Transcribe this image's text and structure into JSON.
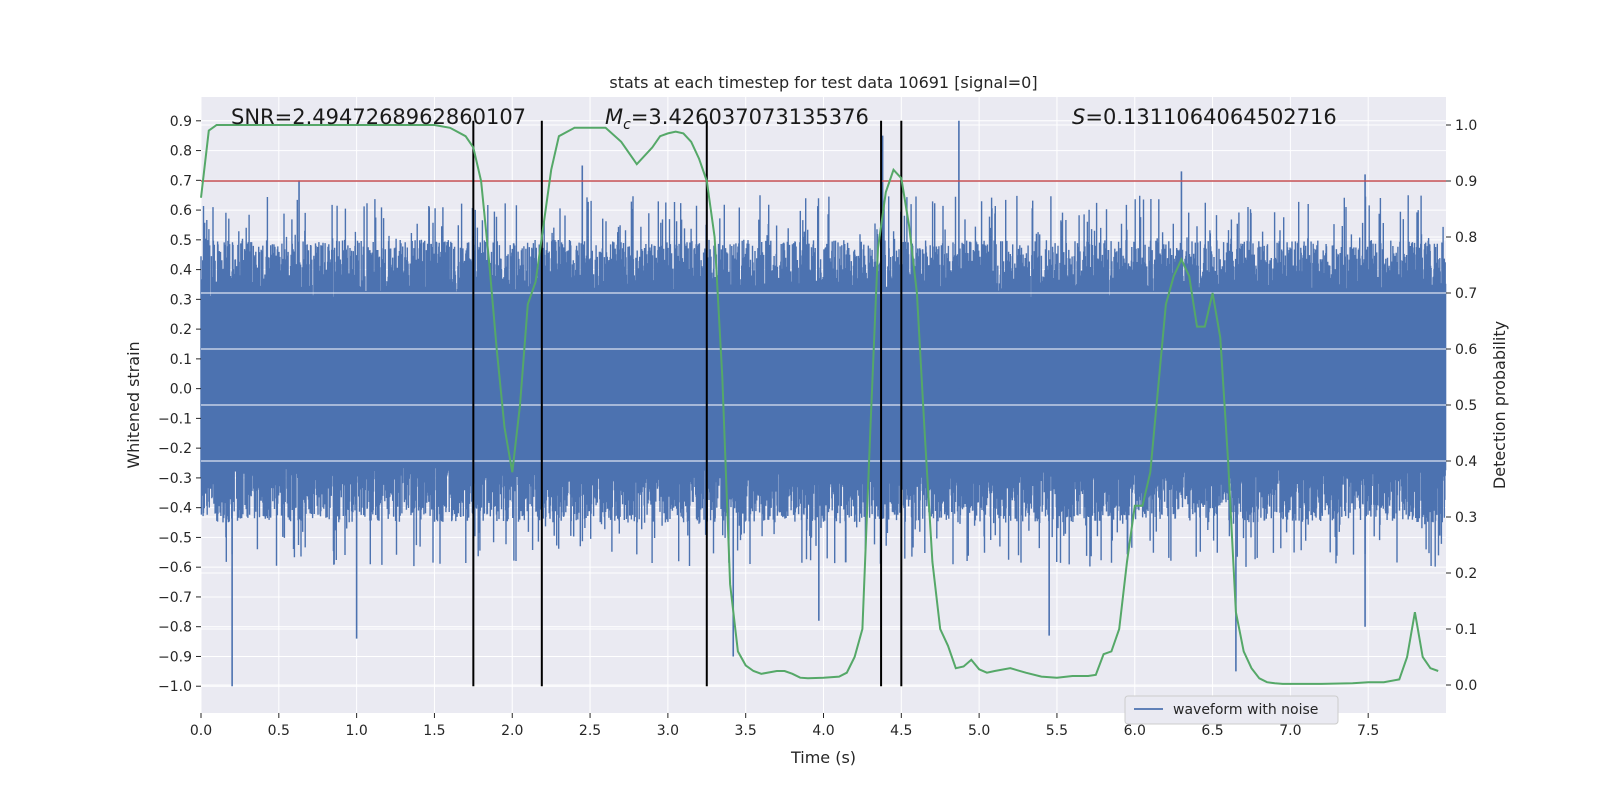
{
  "colors": {
    "background": "#EAEAF2",
    "grid": "#FFFFFF",
    "waveform": "#4C72B0",
    "probability": "#55A868",
    "threshold": "#C44E52",
    "marker": "#000000"
  },
  "chart_data": {
    "type": "line",
    "title": "stats at each timestep for test data 10691 [signal=0]",
    "xlabel": "Time (s)",
    "ylabel_left": "Whitened strain",
    "ylabel_right": "Detection probability",
    "xlim": [
      0.0,
      8.0
    ],
    "ylim_left": [
      -1.09,
      0.98
    ],
    "ylim_right": [
      -0.05,
      1.05
    ],
    "x_ticks": [
      "0.0",
      "0.5",
      "1.0",
      "1.5",
      "2.0",
      "2.5",
      "3.0",
      "3.5",
      "4.0",
      "4.5",
      "5.0",
      "5.5",
      "6.0",
      "6.5",
      "7.0",
      "7.5"
    ],
    "left_ticks": [
      "0.9",
      "0.8",
      "0.7",
      "0.6",
      "0.5",
      "0.4",
      "0.3",
      "0.2",
      "0.1",
      "0.0",
      "−0.1",
      "−0.2",
      "−0.3",
      "−0.4",
      "−0.5",
      "−0.6",
      "−0.7",
      "−0.8",
      "−0.9",
      "−1.0"
    ],
    "right_ticks": [
      "1.0",
      "0.9",
      "0.8",
      "0.7",
      "0.6",
      "0.5",
      "0.4",
      "0.3",
      "0.2",
      "0.1",
      "0.0"
    ],
    "grid": true,
    "legend": {
      "placement": "bottom-right",
      "entries": [
        "waveform with noise"
      ]
    },
    "annotations": {
      "snr": "SNR=2.4947268962860107",
      "mc_symbol": "M",
      "mc_subscript": "c",
      "mc_value": "=3.426037073135376",
      "s_symbol": "S",
      "s_value": "=0.1311064064502716"
    },
    "threshold_probability": 0.9,
    "vertical_markers_s": [
      1.75,
      2.19,
      3.25,
      4.37,
      4.5
    ],
    "marker_range_strain": [
      -1.0,
      0.9
    ],
    "waveform": {
      "name": "waveform with noise",
      "envelope_strain": [
        -0.45,
        0.5
      ],
      "notable_spikes": [
        {
          "t": 0.2,
          "v": -1.0
        },
        {
          "t": 1.0,
          "v": -0.84
        },
        {
          "t": 0.63,
          "v": 0.7
        },
        {
          "t": 1.75,
          "v": -0.71
        },
        {
          "t": 2.45,
          "v": 0.75
        },
        {
          "t": 3.25,
          "v": 0.72
        },
        {
          "t": 3.42,
          "v": -0.9
        },
        {
          "t": 3.97,
          "v": -0.78
        },
        {
          "t": 4.38,
          "v": 0.85
        },
        {
          "t": 4.87,
          "v": 0.9
        },
        {
          "t": 5.45,
          "v": -0.83
        },
        {
          "t": 6.3,
          "v": 0.73
        },
        {
          "t": 6.65,
          "v": -0.95
        },
        {
          "t": 7.48,
          "v": 0.72
        },
        {
          "t": 7.48,
          "v": -0.8
        }
      ]
    },
    "probability": {
      "x": [
        0.0,
        0.05,
        0.1,
        0.15,
        0.25,
        0.5,
        0.75,
        1.0,
        1.25,
        1.5,
        1.6,
        1.7,
        1.75,
        1.8,
        1.85,
        1.9,
        1.95,
        2.0,
        2.05,
        2.1,
        2.15,
        2.2,
        2.25,
        2.3,
        2.4,
        2.5,
        2.6,
        2.7,
        2.8,
        2.9,
        2.95,
        3.0,
        3.05,
        3.1,
        3.15,
        3.2,
        3.25,
        3.3,
        3.35,
        3.4,
        3.45,
        3.5,
        3.55,
        3.6,
        3.7,
        3.75,
        3.8,
        3.85,
        3.9,
        4.0,
        4.1,
        4.15,
        4.2,
        4.25,
        4.3,
        4.35,
        4.4,
        4.45,
        4.5,
        4.55,
        4.6,
        4.65,
        4.7,
        4.75,
        4.8,
        4.85,
        4.9,
        4.95,
        5.0,
        5.05,
        5.1,
        5.2,
        5.3,
        5.4,
        5.5,
        5.6,
        5.7,
        5.75,
        5.8,
        5.85,
        5.9,
        5.95,
        6.0,
        6.05,
        6.1,
        6.15,
        6.2,
        6.25,
        6.3,
        6.35,
        6.4,
        6.45,
        6.5,
        6.55,
        6.6,
        6.65,
        6.7,
        6.75,
        6.8,
        6.85,
        6.9,
        6.95,
        7.0,
        7.2,
        7.4,
        7.5,
        7.6,
        7.7,
        7.75,
        7.8,
        7.85,
        7.9,
        7.95
      ],
      "y": [
        0.87,
        0.99,
        1.0,
        1.0,
        1.0,
        1.0,
        1.0,
        1.0,
        1.0,
        1.0,
        0.995,
        0.98,
        0.96,
        0.9,
        0.76,
        0.6,
        0.46,
        0.38,
        0.5,
        0.68,
        0.72,
        0.82,
        0.92,
        0.98,
        0.995,
        0.995,
        0.995,
        0.97,
        0.93,
        0.96,
        0.98,
        0.985,
        0.988,
        0.985,
        0.97,
        0.94,
        0.9,
        0.8,
        0.55,
        0.18,
        0.06,
        0.035,
        0.025,
        0.02,
        0.025,
        0.025,
        0.02,
        0.013,
        0.012,
        0.013,
        0.015,
        0.022,
        0.05,
        0.1,
        0.45,
        0.78,
        0.88,
        0.92,
        0.905,
        0.82,
        0.7,
        0.45,
        0.22,
        0.1,
        0.07,
        0.03,
        0.033,
        0.045,
        0.028,
        0.022,
        0.025,
        0.03,
        0.022,
        0.015,
        0.013,
        0.016,
        0.016,
        0.018,
        0.055,
        0.06,
        0.1,
        0.22,
        0.32,
        0.32,
        0.38,
        0.53,
        0.68,
        0.73,
        0.76,
        0.73,
        0.64,
        0.64,
        0.7,
        0.62,
        0.4,
        0.13,
        0.06,
        0.03,
        0.012,
        0.005,
        0.003,
        0.002,
        0.002,
        0.002,
        0.003,
        0.005,
        0.005,
        0.01,
        0.05,
        0.13,
        0.05,
        0.03,
        0.025
      ]
    }
  }
}
